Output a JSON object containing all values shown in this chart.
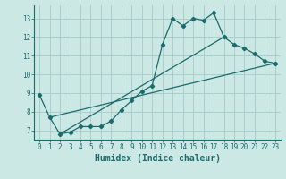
{
  "title": "",
  "xlabel": "Humidex (Indice chaleur)",
  "bg_color": "#cce8e5",
  "grid_color": "#aacfcc",
  "line_color": "#1a6b6b",
  "xlim": [
    -0.5,
    23.5
  ],
  "ylim": [
    6.5,
    13.7
  ],
  "xticks": [
    0,
    1,
    2,
    3,
    4,
    5,
    6,
    7,
    8,
    9,
    10,
    11,
    12,
    13,
    14,
    15,
    16,
    17,
    18,
    19,
    20,
    21,
    22,
    23
  ],
  "yticks": [
    7,
    8,
    9,
    10,
    11,
    12,
    13
  ],
  "curve1_x": [
    0,
    1,
    2,
    3,
    4,
    5,
    6,
    7,
    8,
    9,
    10,
    11,
    12,
    13,
    14,
    15,
    16,
    17,
    18,
    19,
    20,
    21,
    22,
    23
  ],
  "curve1_y": [
    8.9,
    7.7,
    6.8,
    6.9,
    7.2,
    7.2,
    7.2,
    7.5,
    8.1,
    8.6,
    9.1,
    9.4,
    11.6,
    13.0,
    12.6,
    13.0,
    12.9,
    13.3,
    12.0,
    11.6,
    11.4,
    11.1,
    10.7,
    10.6
  ],
  "line1_x": [
    1,
    23
  ],
  "line1_y": [
    7.7,
    10.6
  ],
  "line2_x": [
    1,
    23
  ],
  "line2_y": [
    7.7,
    10.6
  ],
  "line3_x": [
    2,
    18
  ],
  "line3_y": [
    6.8,
    12.0
  ],
  "marker": "D",
  "markersize": 2.2,
  "linewidth": 0.9,
  "tick_fontsize": 5.5,
  "xlabel_fontsize": 7.0
}
